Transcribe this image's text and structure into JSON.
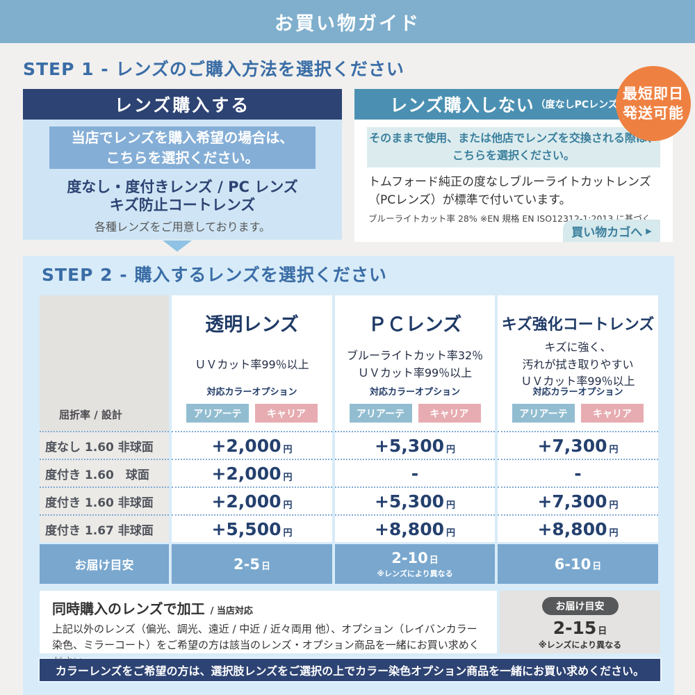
{
  "header": {
    "title": "お買い物ガイド"
  },
  "step1": {
    "title": "STEP 1 - レンズのご購入方法を選択ください",
    "buy": {
      "header": "レンズ購入する",
      "callout_line1": "当店でレンズを購入希望の場合は、",
      "callout_line2": "こちらを選択ください。",
      "lenses_line1": "度なし・度付きレンズ / PC レンズ",
      "lenses_line2": "キズ防止コートレンズ",
      "note": "各種レンズをご用意しております。"
    },
    "skip": {
      "header": "レンズ購入しない",
      "header_sub": "（度なしPCレンズ付）",
      "badge_line1": "最短即日",
      "badge_line2": "発送可能",
      "callout_line1": "そのままで使用、または他店でレンズを交換される際は、",
      "callout_line2": "こちらを選択ください。",
      "body": "トムフォード純正の度なしブルーライトカットレンズ（PCレンズ）が標準で付いています。",
      "note": "ブルーライトカット率 28% ※EN 規格 EN ISO12312-1:2013 に基づく",
      "cart_button": "買い物カゴへ",
      "cart_arrow": "▶"
    }
  },
  "step2": {
    "title": "STEP 2 - 購入するレンズを選択ください",
    "table": {
      "corner_label": "屈折率 / 設計",
      "color_option_label": "対応カラーオプション",
      "chip_blue": "アリアーテ",
      "chip_pink": "キャリア",
      "columns": [
        {
          "title": "透明レンズ",
          "sub1": "ＵＶカット率99％以上",
          "sub2": "",
          "sub3": ""
        },
        {
          "title": "ＰＣレンズ",
          "sub1": "ブルーライトカット率32％",
          "sub2": "ＵＶカット率99％以上",
          "sub3": ""
        },
        {
          "title": "キズ強化コートレンズ",
          "sub1": "キズに強く、",
          "sub2": "汚れが拭き取りやすい",
          "sub3": "ＵＶカット率99％以上"
        }
      ],
      "rows": [
        {
          "label": "度なし 1.60 非球面",
          "cells": [
            {
              "value": "+2,000",
              "unit": "円"
            },
            {
              "value": "+5,300",
              "unit": "円"
            },
            {
              "value": "+7,300",
              "unit": "円"
            }
          ]
        },
        {
          "label": "度付き 1.60　球面",
          "cells": [
            {
              "value": "+2,000",
              "unit": "円"
            },
            {
              "value": "-",
              "unit": ""
            },
            {
              "value": "-",
              "unit": ""
            }
          ]
        },
        {
          "label": "度付き 1.60 非球面",
          "cells": [
            {
              "value": "+2,000",
              "unit": "円"
            },
            {
              "value": "+5,300",
              "unit": "円"
            },
            {
              "value": "+7,300",
              "unit": "円"
            }
          ]
        },
        {
          "label": "度付き 1.67 非球面",
          "cells": [
            {
              "value": "+5,500",
              "unit": "円"
            },
            {
              "value": "+8,800",
              "unit": "円"
            },
            {
              "value": "+8,800",
              "unit": "円"
            }
          ]
        }
      ],
      "delivery": {
        "label": "お届け目安",
        "cells": [
          {
            "value": "2-5",
            "unit": "日",
            "note": ""
          },
          {
            "value": "2-10",
            "unit": "日",
            "note": "※レンズにより異なる"
          },
          {
            "value": "6-10",
            "unit": "日",
            "note": ""
          }
        ]
      }
    }
  },
  "footer": {
    "processing_title": "同時購入のレンズで加工",
    "processing_sub": "/ 当店対応",
    "processing_body": "上記以外のレンズ（偏光、調光、遠近 / 中近 / 近々両用 他）、オプション（レイバンカラー染色、ミラーコート）をご希望の方は該当のレンズ・オプション商品を一緒にお買い求めください。",
    "delivery_pill": "お届け目安",
    "delivery_value": "2-15",
    "delivery_unit": "日",
    "delivery_note": "※レンズにより異なる",
    "color_note": "カラーレンズをご希望の方は、選択肢レンズをご選択の上でカラー染色オプション商品を一緒にお買い求めください。"
  },
  "colors": {
    "top_bar": "#7fafcd",
    "navy": "#2d4373",
    "teal_header": "#4b90b2",
    "orange_badge": "#ee8142",
    "step2_panel": "#d8ebf8",
    "delivery_row": "#79a7ce",
    "chip_blue": "#92bdd1",
    "chip_pink": "#e7acb1"
  }
}
